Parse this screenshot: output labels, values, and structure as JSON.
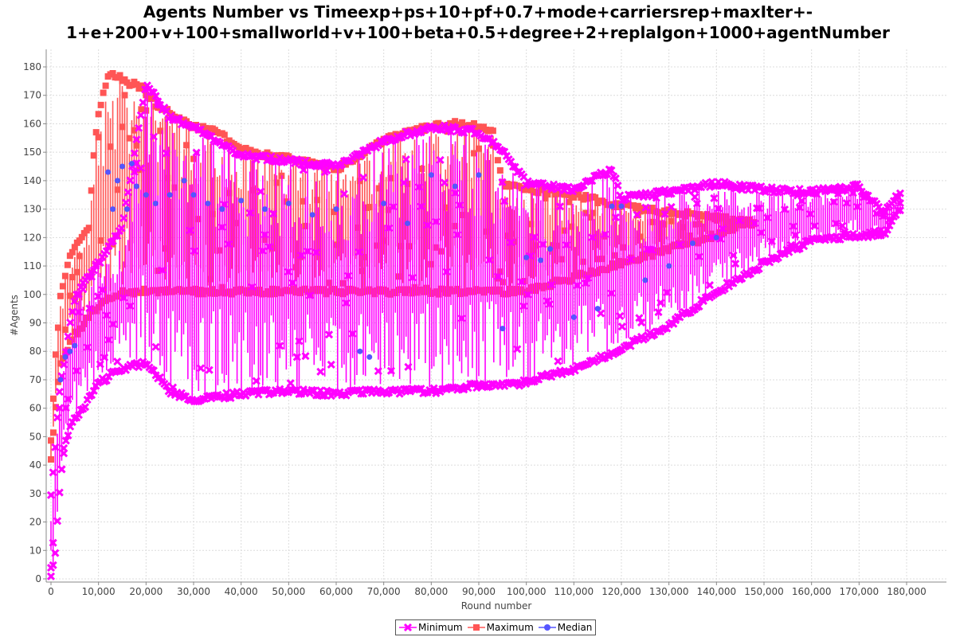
{
  "chart_data": {
    "type": "line",
    "title_lines": [
      "Agents Number vs Timeexp+ps+10+pf+0.7+mode+carriersrep+maxIter+-",
      "1+e+200+v+100+smallworld+v+100+beta+0.5+degree+2+replalgon+1000+agentNumber"
    ],
    "xlabel": "Round number",
    "ylabel": "#Agents",
    "xlim": [
      0,
      188000
    ],
    "ylim": [
      0,
      180
    ],
    "x_ticks": [
      0,
      10000,
      20000,
      30000,
      40000,
      50000,
      60000,
      70000,
      80000,
      90000,
      100000,
      110000,
      120000,
      130000,
      140000,
      150000,
      160000,
      170000,
      180000
    ],
    "x_tick_labels": [
      "0",
      "10,000",
      "20,000",
      "30,000",
      "40,000",
      "50,000",
      "60,000",
      "70,000",
      "80,000",
      "90,000",
      "100,000",
      "110,000",
      "120,000",
      "130,000",
      "140,000",
      "150,000",
      "160,000",
      "170,000",
      "180,000"
    ],
    "y_ticks": [
      0,
      10,
      20,
      30,
      40,
      50,
      60,
      70,
      80,
      90,
      100,
      110,
      120,
      130,
      140,
      150,
      160,
      170,
      180
    ],
    "y_tick_labels": [
      "0",
      "10",
      "20",
      "30",
      "40",
      "50",
      "60",
      "70",
      "80",
      "90",
      "100",
      "110",
      "120",
      "130",
      "140",
      "150",
      "160",
      "170",
      "180"
    ],
    "grid": true,
    "legend_position": "bottom",
    "series": [
      {
        "name": "Minimum",
        "color": "#ff00ff",
        "marker": "cross",
        "lower_envelope": [
          [
            0,
            0
          ],
          [
            1000,
            10
          ],
          [
            2000,
            35
          ],
          [
            3000,
            48
          ],
          [
            5000,
            55
          ],
          [
            8000,
            62
          ],
          [
            10000,
            68
          ],
          [
            15000,
            73
          ],
          [
            20000,
            75
          ],
          [
            25000,
            65
          ],
          [
            30000,
            62
          ],
          [
            35000,
            63
          ],
          [
            40000,
            64
          ],
          [
            50000,
            65
          ],
          [
            60000,
            64
          ],
          [
            70000,
            65
          ],
          [
            80000,
            65
          ],
          [
            90000,
            67
          ],
          [
            100000,
            68
          ],
          [
            110000,
            73
          ],
          [
            120000,
            80
          ],
          [
            130000,
            88
          ],
          [
            140000,
            100
          ],
          [
            150000,
            110
          ],
          [
            160000,
            118
          ],
          [
            170000,
            120
          ],
          [
            175000,
            120
          ],
          [
            179000,
            130
          ]
        ],
        "upper_envelope": [
          [
            0,
            30
          ],
          [
            2000,
            70
          ],
          [
            5000,
            100
          ],
          [
            10000,
            112
          ],
          [
            15000,
            125
          ],
          [
            20000,
            175
          ],
          [
            25000,
            163
          ],
          [
            30000,
            160
          ],
          [
            40000,
            150
          ],
          [
            50000,
            148
          ],
          [
            60000,
            146
          ],
          [
            70000,
            155
          ],
          [
            80000,
            160
          ],
          [
            90000,
            158
          ],
          [
            95000,
            152
          ],
          [
            100000,
            140
          ],
          [
            110000,
            138
          ],
          [
            118000,
            145
          ],
          [
            120000,
            135
          ],
          [
            130000,
            137
          ],
          [
            140000,
            140
          ],
          [
            150000,
            138
          ],
          [
            160000,
            137
          ],
          [
            170000,
            139
          ],
          [
            175000,
            130
          ],
          [
            179000,
            137
          ]
        ]
      },
      {
        "name": "Maximum",
        "color": "#ff5555",
        "marker": "square",
        "lower_envelope": [
          [
            0,
            40
          ],
          [
            1000,
            60
          ],
          [
            2000,
            75
          ],
          [
            5000,
            85
          ],
          [
            10000,
            95
          ],
          [
            15000,
            100
          ],
          [
            20000,
            100
          ],
          [
            30000,
            100
          ],
          [
            50000,
            100
          ],
          [
            70000,
            100
          ],
          [
            90000,
            100
          ],
          [
            100000,
            100
          ],
          [
            120000,
            110
          ],
          [
            140000,
            120
          ],
          [
            148000,
            125
          ]
        ],
        "upper_envelope": [
          [
            0,
            50
          ],
          [
            1000,
            80
          ],
          [
            2000,
            100
          ],
          [
            4000,
            115
          ],
          [
            6000,
            120
          ],
          [
            8000,
            125
          ],
          [
            9000,
            150
          ],
          [
            10000,
            165
          ],
          [
            12000,
            178
          ],
          [
            14000,
            178
          ],
          [
            16000,
            175
          ],
          [
            18000,
            175
          ],
          [
            20000,
            172
          ],
          [
            22000,
            168
          ],
          [
            25000,
            165
          ],
          [
            30000,
            160
          ],
          [
            35000,
            158
          ],
          [
            40000,
            152
          ],
          [
            45000,
            150
          ],
          [
            50000,
            149
          ],
          [
            55000,
            148
          ],
          [
            60000,
            145
          ],
          [
            65000,
            150
          ],
          [
            70000,
            155
          ],
          [
            75000,
            158
          ],
          [
            80000,
            160
          ],
          [
            85000,
            161
          ],
          [
            90000,
            160
          ],
          [
            93000,
            158
          ],
          [
            95000,
            140
          ],
          [
            100000,
            138
          ],
          [
            110000,
            136
          ],
          [
            120000,
            132
          ],
          [
            130000,
            130
          ],
          [
            140000,
            128
          ],
          [
            148000,
            126
          ]
        ]
      },
      {
        "name": "Median",
        "color": "#5555ff",
        "marker": "circle",
        "points": [
          [
            2000,
            70
          ],
          [
            3000,
            78
          ],
          [
            4000,
            80
          ],
          [
            5000,
            82
          ],
          [
            12000,
            143
          ],
          [
            13000,
            130
          ],
          [
            14000,
            140
          ],
          [
            15000,
            145
          ],
          [
            16000,
            130
          ],
          [
            17000,
            146
          ],
          [
            18000,
            138
          ],
          [
            20000,
            135
          ],
          [
            22000,
            132
          ],
          [
            25000,
            135
          ],
          [
            28000,
            140
          ],
          [
            30000,
            135
          ],
          [
            33000,
            132
          ],
          [
            36000,
            130
          ],
          [
            40000,
            133
          ],
          [
            45000,
            130
          ],
          [
            50000,
            132
          ],
          [
            55000,
            128
          ],
          [
            60000,
            130
          ],
          [
            65000,
            80
          ],
          [
            67000,
            78
          ],
          [
            70000,
            132
          ],
          [
            75000,
            125
          ],
          [
            80000,
            142
          ],
          [
            85000,
            138
          ],
          [
            90000,
            142
          ],
          [
            95000,
            88
          ],
          [
            100000,
            113
          ],
          [
            103000,
            112
          ],
          [
            105000,
            116
          ],
          [
            110000,
            92
          ],
          [
            115000,
            95
          ],
          [
            118000,
            131
          ],
          [
            120000,
            131
          ],
          [
            125000,
            105
          ],
          [
            130000,
            110
          ],
          [
            135000,
            118
          ],
          [
            140000,
            120
          ]
        ]
      }
    ]
  }
}
